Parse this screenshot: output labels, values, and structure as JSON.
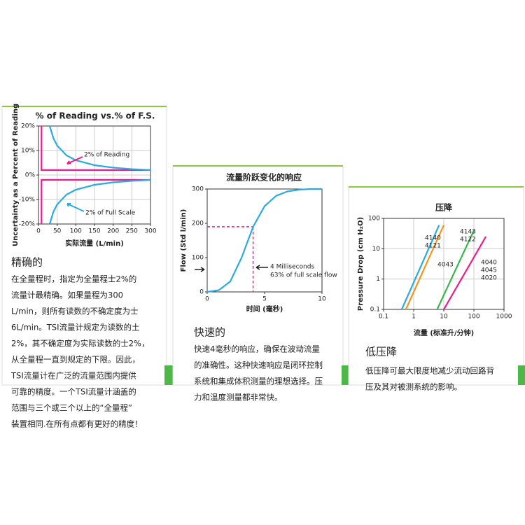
{
  "chart_data": [
    {
      "type": "line",
      "title": "% of Reading vs.% of F.S.",
      "x_label": "实际流量 (L/min)",
      "y_label": "Uncertainty as a Percent of Reading",
      "xlim": [
        0,
        300
      ],
      "xticks": [
        0,
        50,
        100,
        150,
        200,
        250,
        300
      ],
      "ylim": [
        -20,
        20
      ],
      "yticks": [
        {
          "value": -20,
          "label": "-20%"
        },
        {
          "value": -10,
          "label": "-10%"
        },
        {
          "value": 0,
          "label": "0%"
        },
        {
          "value": 10,
          "label": "10%"
        },
        {
          "value": 20,
          "label": "20%"
        }
      ],
      "grid": true,
      "log": false,
      "series": [
        {
          "name": "2% of Reading",
          "color": "#ec1c8c",
          "x": [
            8,
            8,
            300
          ],
          "values": [
            20,
            2,
            2
          ]
        },
        {
          "color": "#ec1c8c",
          "x": [
            8,
            8,
            300
          ],
          "values": [
            -20,
            -2,
            -2
          ]
        },
        {
          "name": "2% of Full Scale",
          "color": "#29abe2",
          "x": [
            30,
            40,
            50,
            75,
            100,
            150,
            200,
            250,
            300
          ],
          "values": [
            20,
            15,
            12,
            8,
            6,
            4,
            3,
            2.4,
            2
          ]
        },
        {
          "color": "#29abe2",
          "x": [
            30,
            40,
            50,
            75,
            100,
            150,
            200,
            250,
            300
          ],
          "values": [
            -20,
            -15,
            -12,
            -8,
            -6,
            -4,
            -3,
            -2.4,
            -2
          ]
        }
      ]
    },
    {
      "type": "line",
      "title": "流量阶跃变化的响应",
      "x_label": "时间 (毫秒)",
      "y_label": "Flow (Std l/min)",
      "xlim": [
        0,
        10
      ],
      "xticks": [
        0,
        5,
        10
      ],
      "ylim": [
        0,
        300
      ],
      "yticks": [
        0,
        100,
        200,
        300
      ],
      "grid": false,
      "log": false,
      "series": [
        {
          "color": "#29abe2",
          "x": [
            0,
            1,
            2,
            3,
            4,
            5,
            6,
            7,
            8,
            9,
            10
          ],
          "values": [
            0,
            5,
            30,
            100,
            190,
            250,
            280,
            293,
            298,
            300,
            300
          ]
        }
      ],
      "marker": {
        "x": 4,
        "y": 190,
        "color": "#ec1c8c"
      },
      "annotations": [
        "4 Milliseconds",
        "63% of full scale flow"
      ]
    },
    {
      "type": "line",
      "title": "压降",
      "x_label": "流量 (标准升/分钟)",
      "y_label": "Pressure Drop (cm H₂O)",
      "xlim": [
        0.1,
        1000
      ],
      "xticks": [
        0.1,
        1,
        10,
        100,
        1000
      ],
      "ylim": [
        0.1,
        100
      ],
      "yticks": [
        0.1,
        1,
        10,
        100
      ],
      "grid": true,
      "log": true,
      "series": [
        {
          "labels": [
            "4140",
            "4121"
          ],
          "color": "#29abe2",
          "x": [
            0.4,
            7
          ],
          "values": [
            0.1,
            60
          ]
        },
        {
          "labels": [
            "4143",
            "4122"
          ],
          "color": "#f7941d",
          "x": [
            0.55,
            10
          ],
          "values": [
            0.1,
            60
          ]
        },
        {
          "labels": [
            "4043"
          ],
          "color": "#39b54a",
          "x": [
            6,
            100
          ],
          "values": [
            0.1,
            40
          ]
        },
        {
          "labels": [
            "4040",
            "4045",
            "4020"
          ],
          "color": "#ec1c8c",
          "x": [
            10,
            250
          ],
          "values": [
            0.1,
            25
          ]
        }
      ]
    }
  ],
  "sections": [
    {
      "heading": "精确的",
      "body": [
        "在全量程时，指定为全量程士2%的",
        "流量计最精确。如果量程为300",
        "L/min，则所有读数的不确定度为士",
        "6L/min。TSI流量计规定为读数的土",
        "2%，其不确定度为实际读数的士2%，",
        "从全量程一直到规定的下限。因此，",
        "TSI流量计在广泛的流量范围内提供",
        "可靠的精度。一个TSI流量计涵盖的",
        "范围与三个或三个以上的“全量程”",
        "装置相同.在所有点都有更好的精度！"
      ]
    },
    {
      "heading": "快速的",
      "body": [
        "快速4毫秒的响应，确保在波动流量",
        "的准确性。这种快速响应是闭环控制",
        "系统和集成体积测量的理想选择。压",
        "力和温度测量都非常快。"
      ]
    },
    {
      "heading": "低压降",
      "body": [
        "低压降可最大限度地减少流动回路背",
        "压及其对被测系统的影响。"
      ]
    }
  ]
}
